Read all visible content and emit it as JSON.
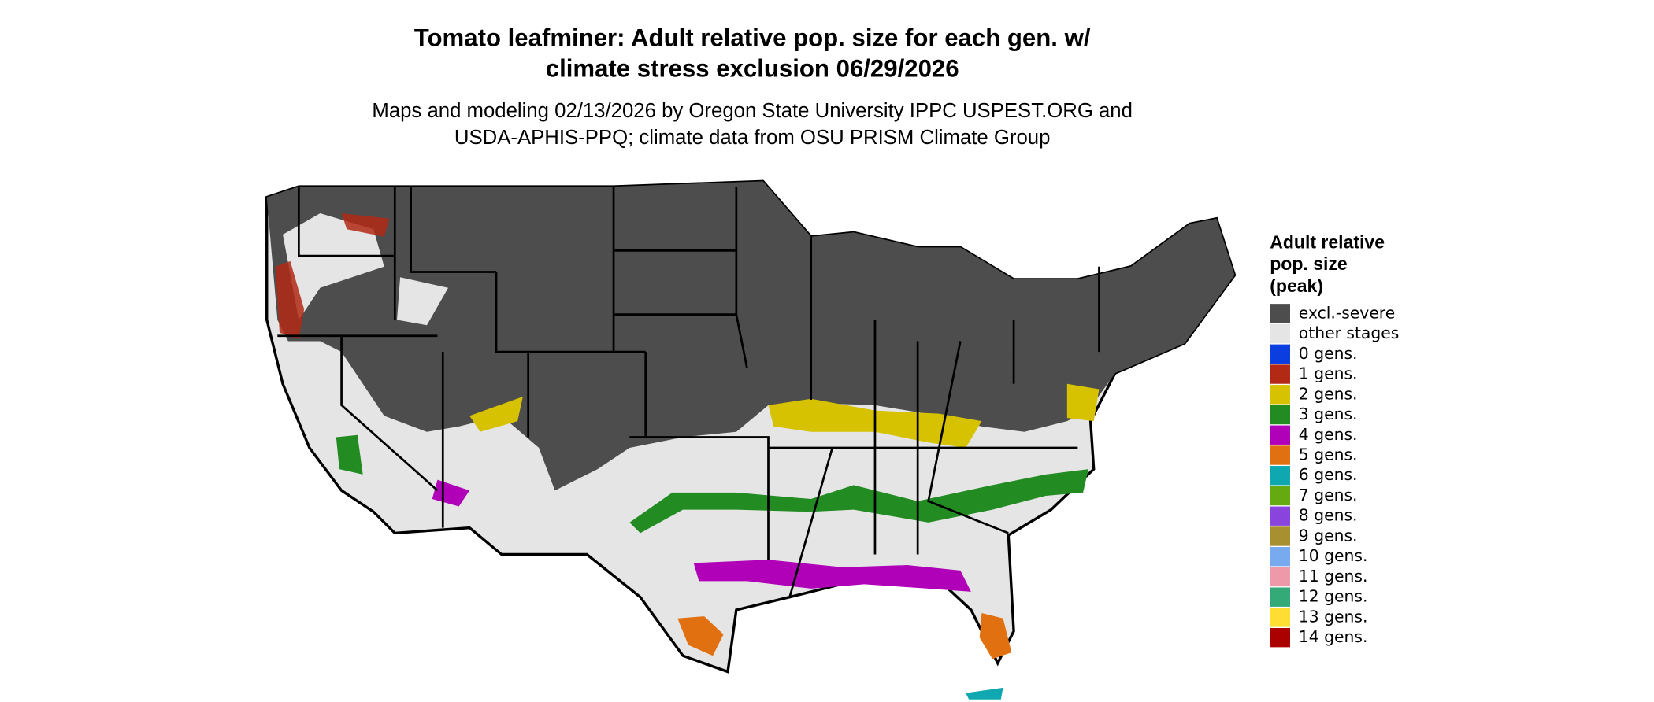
{
  "header": {
    "title_lines": [
      "Tomato leafminer: Adult relative pop. size for each gen. w/",
      "climate stress exclusion 06/29/2026"
    ],
    "subtitle_lines": [
      "Maps and modeling 02/13/2026 by Oregon State University IPPC USPEST.ORG and",
      "USDA-APHIS-PPQ; climate data from OSU PRISM Climate Group"
    ]
  },
  "legend": {
    "title_lines": [
      "Adult relative",
      "pop. size",
      "(peak)"
    ],
    "items": [
      {
        "label": "excl.-severe",
        "color": "#4d4d4d"
      },
      {
        "label": "other stages",
        "color": "#e5e5e5"
      },
      {
        "label": "0 gens.",
        "color": "#0a3ee0"
      },
      {
        "label": "1 gens.",
        "color": "#b22a16"
      },
      {
        "label": "2 gens.",
        "color": "#d6c200"
      },
      {
        "label": "3 gens.",
        "color": "#228b22"
      },
      {
        "label": "4 gens.",
        "color": "#b000b8"
      },
      {
        "label": "5 gens.",
        "color": "#e07010"
      },
      {
        "label": "6 gens.",
        "color": "#10a8b0"
      },
      {
        "label": "7 gens.",
        "color": "#66aa11"
      },
      {
        "label": "8 gens.",
        "color": "#8844dd"
      },
      {
        "label": "9 gens.",
        "color": "#a89030"
      },
      {
        "label": "10 gens.",
        "color": "#77aaee"
      },
      {
        "label": "11 gens.",
        "color": "#ee99aa"
      },
      {
        "label": "12 gens.",
        "color": "#33aa77"
      },
      {
        "label": "13 gens.",
        "color": "#ffdd33"
      },
      {
        "label": "14 gens.",
        "color": "#aa0000"
      }
    ]
  }
}
